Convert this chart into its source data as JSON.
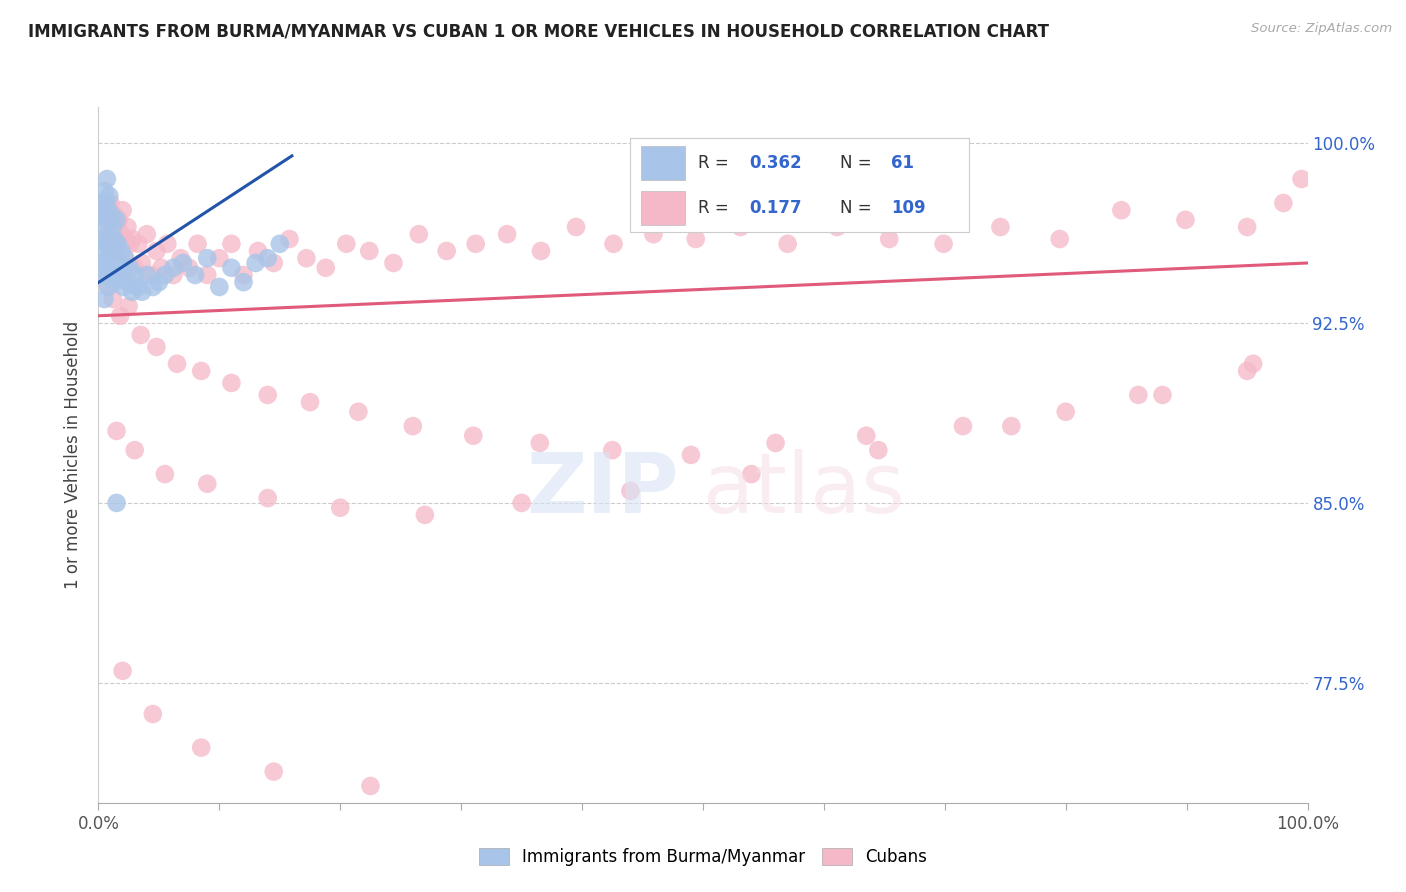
{
  "title": "IMMIGRANTS FROM BURMA/MYANMAR VS CUBAN 1 OR MORE VEHICLES IN HOUSEHOLD CORRELATION CHART",
  "source": "Source: ZipAtlas.com",
  "ylabel": "1 or more Vehicles in Household",
  "R_blue": 0.362,
  "N_blue": 61,
  "R_pink": 0.177,
  "N_pink": 109,
  "blue_color": "#a8c4e8",
  "pink_color": "#f5b8c8",
  "blue_line_color": "#2255aa",
  "pink_line_color": "#e05a7a",
  "legend_blue_label": "Immigrants from Burma/Myanmar",
  "legend_pink_label": "Cubans",
  "background_color": "#ffffff",
  "grid_color": "#cccccc",
  "ytick_vals": [
    0.775,
    0.85,
    0.925,
    1.0
  ],
  "ytick_labels": [
    "77.5%",
    "85.0%",
    "92.5%",
    "100.0%"
  ],
  "xlim": [
    0.0,
    1.0
  ],
  "ylim": [
    0.725,
    1.015
  ]
}
